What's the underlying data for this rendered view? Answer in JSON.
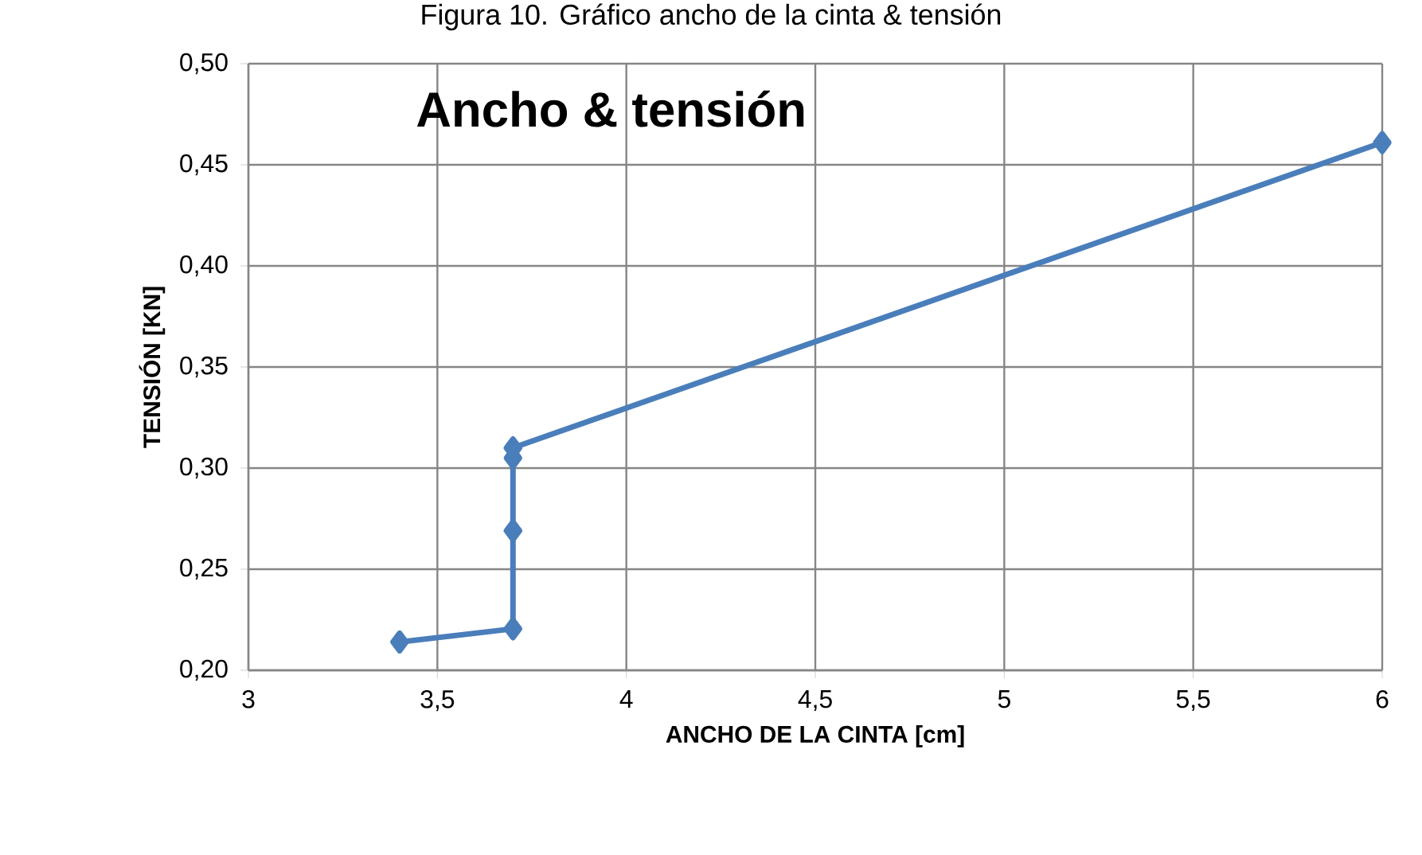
{
  "chart_data": {
    "type": "line",
    "title": "Ancho & tensión",
    "xlabel": "ANCHO DE LA CINTA [cm]",
    "ylabel": "TENSIÓN  [KN]",
    "annotations": [
      "Figura 10. Gráfico ancho de la cinta & tensión"
    ],
    "x": [
      3.4,
      3.7,
      3.7,
      3.7,
      3.7,
      6
    ],
    "series": [
      {
        "color": "#4a7ebb",
        "values": [
          0.214,
          0.2205,
          0.269,
          0.305,
          0.31,
          0.461
        ]
      }
    ],
    "xlim": [
      3,
      6
    ],
    "ylim": [
      0.2,
      0.5
    ],
    "xticks": [
      3,
      {
        "value": 3.5,
        "label": "3,5"
      },
      4,
      {
        "value": 4.5,
        "label": "4,5"
      },
      5,
      {
        "value": 5.5,
        "label": "5,5"
      },
      6
    ],
    "yticks": [
      {
        "value": 0.2,
        "label": "0,20"
      },
      {
        "value": 0.25,
        "label": "0,25"
      },
      {
        "value": 0.3,
        "label": "0,30"
      },
      {
        "value": 0.35,
        "label": "0,35"
      },
      {
        "value": 0.4,
        "label": "0,40"
      },
      {
        "value": 0.45,
        "label": "0,45"
      },
      {
        "value": 0.5,
        "label": "0,50"
      }
    ],
    "grid": true,
    "marker": "diamond",
    "line_style": "solid"
  }
}
